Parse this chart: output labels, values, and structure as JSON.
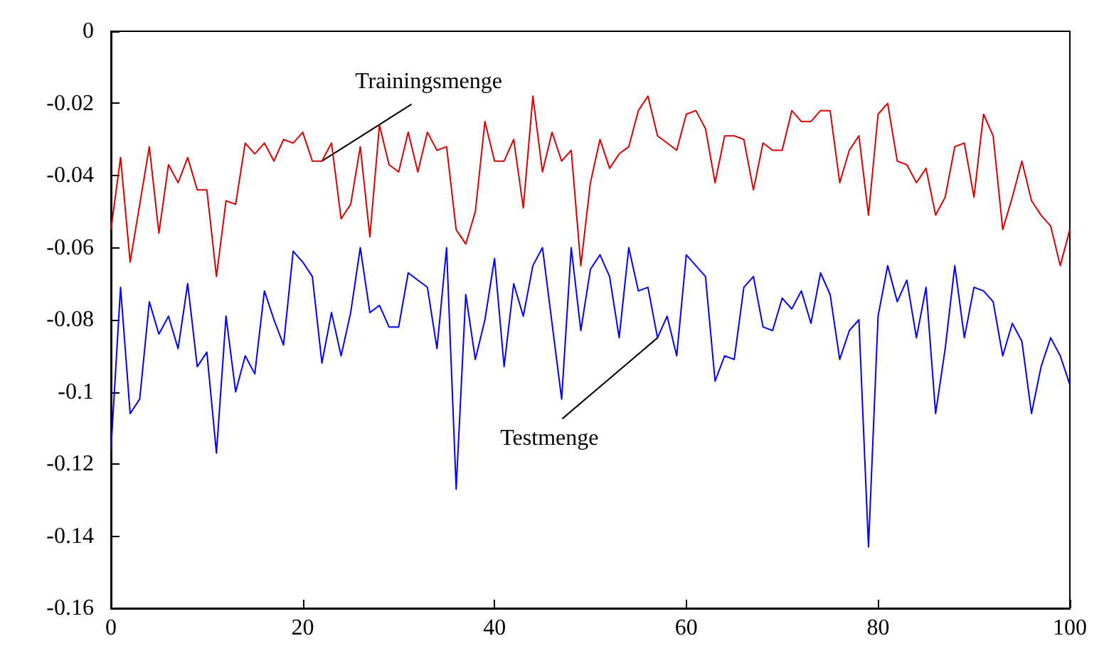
{
  "chart_data": {
    "type": "line",
    "xlim": [
      0,
      100
    ],
    "xticks": [
      0,
      20,
      40,
      60,
      80,
      100
    ],
    "ylim": [
      -0.16,
      0
    ],
    "yticks": [
      -0.16,
      -0.14,
      -0.12,
      -0.1,
      -0.08,
      -0.06,
      -0.04,
      -0.02,
      0
    ],
    "grid": false,
    "marker": "none",
    "line_style": "solid",
    "x": [
      0,
      1,
      2,
      3,
      4,
      5,
      6,
      7,
      8,
      9,
      10,
      11,
      12,
      13,
      14,
      15,
      16,
      17,
      18,
      19,
      20,
      21,
      22,
      23,
      24,
      25,
      26,
      27,
      28,
      29,
      30,
      31,
      32,
      33,
      34,
      35,
      36,
      37,
      38,
      39,
      40,
      41,
      42,
      43,
      44,
      45,
      46,
      47,
      48,
      49,
      50,
      51,
      52,
      53,
      54,
      55,
      56,
      57,
      58,
      59,
      60,
      61,
      62,
      63,
      64,
      65,
      66,
      67,
      68,
      69,
      70,
      71,
      72,
      73,
      74,
      75,
      76,
      77,
      78,
      79,
      80,
      81,
      82,
      83,
      84,
      85,
      86,
      87,
      88,
      89,
      90,
      91,
      92,
      93,
      94,
      95,
      96,
      97,
      98,
      99,
      100
    ],
    "series": [
      {
        "color": "#dd0000",
        "values": [
          -0.055,
          -0.035,
          -0.064,
          -0.048,
          -0.032,
          -0.056,
          -0.037,
          -0.042,
          -0.035,
          -0.044,
          -0.044,
          -0.068,
          -0.047,
          -0.048,
          -0.031,
          -0.034,
          -0.031,
          -0.036,
          -0.03,
          -0.031,
          -0.028,
          -0.036,
          -0.036,
          -0.031,
          -0.052,
          -0.048,
          -0.032,
          -0.057,
          -0.026,
          -0.037,
          -0.039,
          -0.028,
          -0.039,
          -0.028,
          -0.033,
          -0.032,
          -0.055,
          -0.059,
          -0.05,
          -0.025,
          -0.036,
          -0.036,
          -0.03,
          -0.049,
          -0.018,
          -0.039,
          -0.028,
          -0.036,
          -0.033,
          -0.065,
          -0.042,
          -0.03,
          -0.038,
          -0.034,
          -0.032,
          -0.022,
          -0.018,
          -0.029,
          -0.031,
          -0.033,
          -0.023,
          -0.022,
          -0.027,
          -0.042,
          -0.029,
          -0.029,
          -0.03,
          -0.044,
          -0.031,
          -0.033,
          -0.033,
          -0.022,
          -0.025,
          -0.025,
          -0.022,
          -0.022,
          -0.042,
          -0.033,
          -0.029,
          -0.051,
          -0.023,
          -0.02,
          -0.036,
          -0.037,
          -0.042,
          -0.038,
          -0.051,
          -0.046,
          -0.032,
          -0.031,
          -0.046,
          -0.023,
          -0.029,
          -0.055,
          -0.046,
          -0.036,
          -0.047,
          -0.051,
          -0.054,
          -0.065,
          -0.055
        ]
      },
      {
        "color": "#0000ff",
        "values": [
          -0.116,
          -0.071,
          -0.106,
          -0.102,
          -0.075,
          -0.084,
          -0.079,
          -0.088,
          -0.07,
          -0.093,
          -0.089,
          -0.117,
          -0.079,
          -0.1,
          -0.09,
          -0.095,
          -0.072,
          -0.08,
          -0.087,
          -0.061,
          -0.064,
          -0.068,
          -0.092,
          -0.078,
          -0.09,
          -0.078,
          -0.06,
          -0.078,
          -0.076,
          -0.082,
          -0.082,
          -0.067,
          -0.069,
          -0.071,
          -0.088,
          -0.06,
          -0.127,
          -0.073,
          -0.091,
          -0.08,
          -0.063,
          -0.093,
          -0.07,
          -0.079,
          -0.065,
          -0.06,
          -0.081,
          -0.102,
          -0.06,
          -0.083,
          -0.066,
          -0.062,
          -0.068,
          -0.085,
          -0.06,
          -0.072,
          -0.071,
          -0.085,
          -0.079,
          -0.09,
          -0.062,
          -0.065,
          -0.068,
          -0.097,
          -0.09,
          -0.091,
          -0.071,
          -0.068,
          -0.082,
          -0.083,
          -0.074,
          -0.077,
          -0.072,
          -0.081,
          -0.067,
          -0.073,
          -0.091,
          -0.083,
          -0.08,
          -0.143,
          -0.079,
          -0.065,
          -0.075,
          -0.069,
          -0.085,
          -0.071,
          -0.106,
          -0.088,
          -0.065,
          -0.085,
          -0.071,
          -0.072,
          -0.075,
          -0.09,
          -0.081,
          -0.086,
          -0.106,
          -0.093,
          -0.085,
          -0.09,
          -0.098
        ]
      }
    ],
    "annotations": [
      {
        "text": "Trainingsmenge",
        "x": 22,
        "y": -0.036
      },
      {
        "text": "Testmenge",
        "x": 57,
        "y": -0.085
      }
    ]
  }
}
